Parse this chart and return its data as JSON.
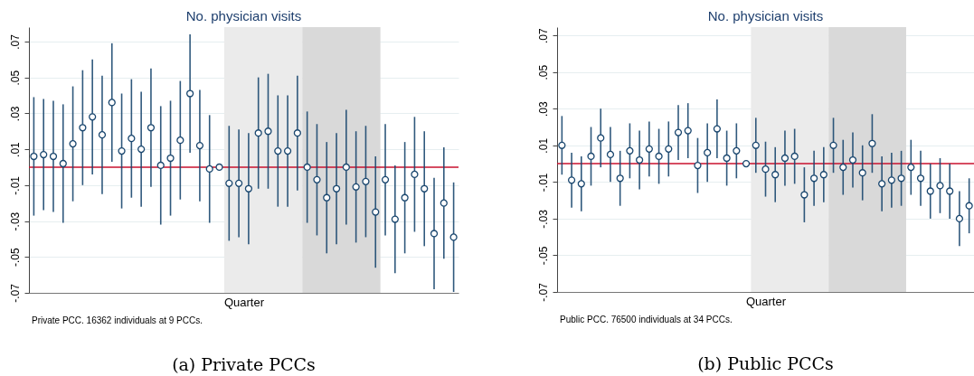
{
  "chart_data": [
    {
      "type": "scatter",
      "title": "No. physician visits",
      "xlabel": "Quarter",
      "annotations": [
        "Private PCC. 16362 individuals at 9 PCCs.",
        "(a) Private PCCs"
      ],
      "categories": [
        null,
        null,
        null,
        null,
        null,
        null,
        null,
        null,
        null,
        null,
        null,
        null,
        null,
        null,
        null,
        null,
        null,
        null,
        null,
        null,
        null,
        null,
        null,
        null,
        null,
        null,
        null,
        null,
        null,
        null,
        null,
        null,
        null,
        null,
        null,
        null,
        null,
        null,
        null,
        null,
        null,
        null,
        null,
        null
      ],
      "ylim": [
        -0.07,
        0.078
      ],
      "yticks": [
        {
          "value": 0.07,
          "label": ".07"
        },
        {
          "value": 0.05,
          "label": ".05"
        },
        {
          "value": 0.03,
          "label": ".03"
        },
        {
          "value": 0.01,
          "label": ".01"
        },
        {
          "value": -0.01,
          "label": "-.01"
        },
        {
          "value": -0.03,
          "label": "-.03"
        },
        {
          "value": -0.05,
          "label": "-.05"
        },
        {
          "value": -0.07,
          "label": "-.07"
        }
      ],
      "grid": "y",
      "tick_labels": "y",
      "marker": "circle",
      "ref_lines": [
        {
          "axis": "y",
          "value": 0,
          "color": "#c8102e"
        }
      ],
      "series": [
        {
          "color": "#1a476f",
          "values": [
            0.006,
            0.007,
            0.006,
            0.002,
            0.013,
            0.022,
            0.028,
            0.018,
            0.036,
            0.009,
            0.016,
            0.01,
            0.022,
            0.001,
            0.005,
            0.015,
            0.041,
            0.012,
            -0.001,
            0,
            -0.009,
            -0.009,
            -0.012,
            0.019,
            0.02,
            0.009,
            0.009,
            0.019,
            0,
            -0.007,
            -0.017,
            -0.012,
            0,
            -0.011,
            -0.008,
            -0.025,
            -0.007,
            -0.029,
            -0.017,
            -0.004,
            -0.012,
            -0.037,
            -0.02,
            -0.039
          ],
          "errors": [
            0.033,
            0.031,
            0.031,
            0.033,
            0.032,
            0.032,
            0.032,
            0.033,
            0.033,
            0.032,
            0.033,
            0.032,
            0.033,
            0.033,
            0.032,
            0.033,
            0.033,
            0.031,
            0.03,
            null,
            0.032,
            0.03,
            0.031,
            0.031,
            0.032,
            0.031,
            0.031,
            0.032,
            0.031,
            0.031,
            0.031,
            0.031,
            0.032,
            0.031,
            0.031,
            0.031,
            0.031,
            0.03,
            0.031,
            0.032,
            0.032,
            0.031,
            0.031,
            0.0305
          ]
        }
      ]
    },
    {
      "type": "scatter",
      "title": "No. physician visits",
      "xlabel": "Quarter",
      "annotations": [
        "Public PCC. 76500 individuals at 34 PCCs.",
        "(b) Public PCCs"
      ],
      "categories": [
        null,
        null,
        null,
        null,
        null,
        null,
        null,
        null,
        null,
        null,
        null,
        null,
        null,
        null,
        null,
        null,
        null,
        null,
        null,
        null,
        null,
        null,
        null,
        null,
        null,
        null,
        null,
        null,
        null,
        null,
        null,
        null,
        null,
        null,
        null,
        null,
        null,
        null,
        null,
        null,
        null,
        null,
        null
      ],
      "ylim": [
        -0.07,
        0.0745
      ],
      "yticks": [
        {
          "value": 0.07,
          "label": ".07"
        },
        {
          "value": 0.05,
          "label": ".05"
        },
        {
          "value": 0.03,
          "label": ".03"
        },
        {
          "value": 0.01,
          "label": ".01"
        },
        {
          "value": -0.01,
          "label": "-.01"
        },
        {
          "value": -0.03,
          "label": "-.03"
        },
        {
          "value": -0.05,
          "label": "-.05"
        },
        {
          "value": -0.07,
          "label": "-.07"
        }
      ],
      "grid": "y",
      "tick_labels": "y",
      "marker": "circle",
      "ref_lines": [
        {
          "axis": "y",
          "value": 0,
          "color": "#c8102e"
        }
      ],
      "series": [
        {
          "color": "#1a476f",
          "values": [
            0.01,
            -0.009,
            -0.011,
            0.004,
            0.014,
            0.005,
            -0.008,
            0.007,
            0.002,
            0.008,
            0.004,
            0.008,
            0.017,
            0.018,
            -0.001,
            0.006,
            0.019,
            0.003,
            0.007,
            0,
            0.01,
            -0.003,
            -0.006,
            0.003,
            0.004,
            -0.017,
            -0.008,
            -0.006,
            0.01,
            -0.002,
            0.002,
            -0.005,
            0.011,
            -0.011,
            -0.009,
            -0.008,
            -0.002,
            -0.008,
            -0.015,
            -0.012,
            -0.015,
            -0.03,
            -0.023
          ],
          "errors": [
            0.016,
            0.015,
            0.015,
            0.016,
            0.016,
            0.015,
            0.015,
            0.015,
            0.016,
            0.015,
            0.015,
            0.015,
            0.015,
            0.015,
            0.015,
            0.016,
            0.016,
            0.015,
            0.015,
            null,
            0.015,
            0.015,
            0.015,
            0.015,
            0.015,
            0.015,
            0.015,
            0.015,
            0.015,
            0.015,
            0.015,
            0.015,
            0.016,
            0.015,
            0.015,
            0.015,
            0.015,
            0.015,
            0.015,
            0.015,
            0.015,
            0.015,
            0.015
          ]
        }
      ]
    }
  ]
}
